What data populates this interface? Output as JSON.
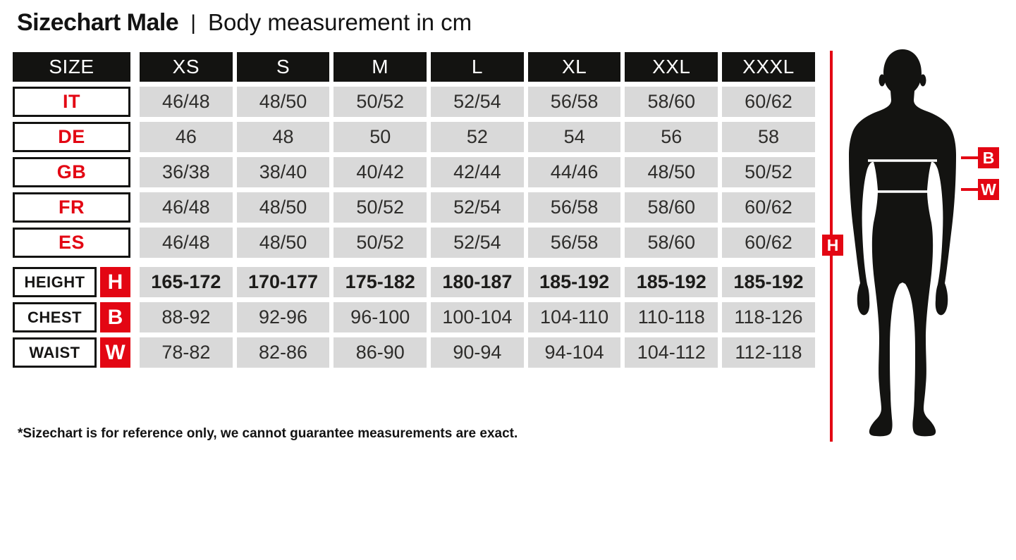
{
  "title": {
    "main": "Sizechart Male",
    "separator": "|",
    "subtitle": "Body measurement in cm"
  },
  "footnote": "*Sizechart is for reference only, we cannot guarantee measurements are exact.",
  "figure": {
    "height_label": "H",
    "chest_label": "B",
    "waist_label": "W"
  },
  "colors": {
    "accent_red": "#e30613",
    "header_black": "#131311",
    "cell_gray": "#d9d9d9",
    "cell_text": "#2e2d2b"
  },
  "chart_data": {
    "type": "table",
    "title": "Sizechart Male",
    "subtitle": "Body measurement in cm",
    "corner_label": "SIZE",
    "columns": [
      "XS",
      "S",
      "M",
      "L",
      "XL",
      "XXL",
      "XXXL"
    ],
    "country_rows": [
      {
        "label": "IT",
        "values": [
          "46/48",
          "48/50",
          "50/52",
          "52/54",
          "56/58",
          "58/60",
          "60/62"
        ]
      },
      {
        "label": "DE",
        "values": [
          "46",
          "48",
          "50",
          "52",
          "54",
          "56",
          "58"
        ]
      },
      {
        "label": "GB",
        "values": [
          "36/38",
          "38/40",
          "40/42",
          "42/44",
          "44/46",
          "48/50",
          "50/52"
        ]
      },
      {
        "label": "FR",
        "values": [
          "46/48",
          "48/50",
          "50/52",
          "52/54",
          "56/58",
          "58/60",
          "60/62"
        ]
      },
      {
        "label": "ES",
        "values": [
          "46/48",
          "48/50",
          "50/52",
          "52/54",
          "56/58",
          "58/60",
          "60/62"
        ]
      }
    ],
    "measurement_rows": [
      {
        "label": "HEIGHT",
        "letter": "H",
        "bold": true,
        "values": [
          "165-172",
          "170-177",
          "175-182",
          "180-187",
          "185-192",
          "185-192",
          "185-192"
        ]
      },
      {
        "label": "CHEST",
        "letter": "B",
        "bold": false,
        "values": [
          "88-92",
          "92-96",
          "96-100",
          "100-104",
          "104-110",
          "110-118",
          "118-126"
        ]
      },
      {
        "label": "WAIST",
        "letter": "W",
        "bold": false,
        "values": [
          "78-82",
          "82-86",
          "86-90",
          "90-94",
          "94-104",
          "104-112",
          "112-118"
        ]
      }
    ]
  }
}
